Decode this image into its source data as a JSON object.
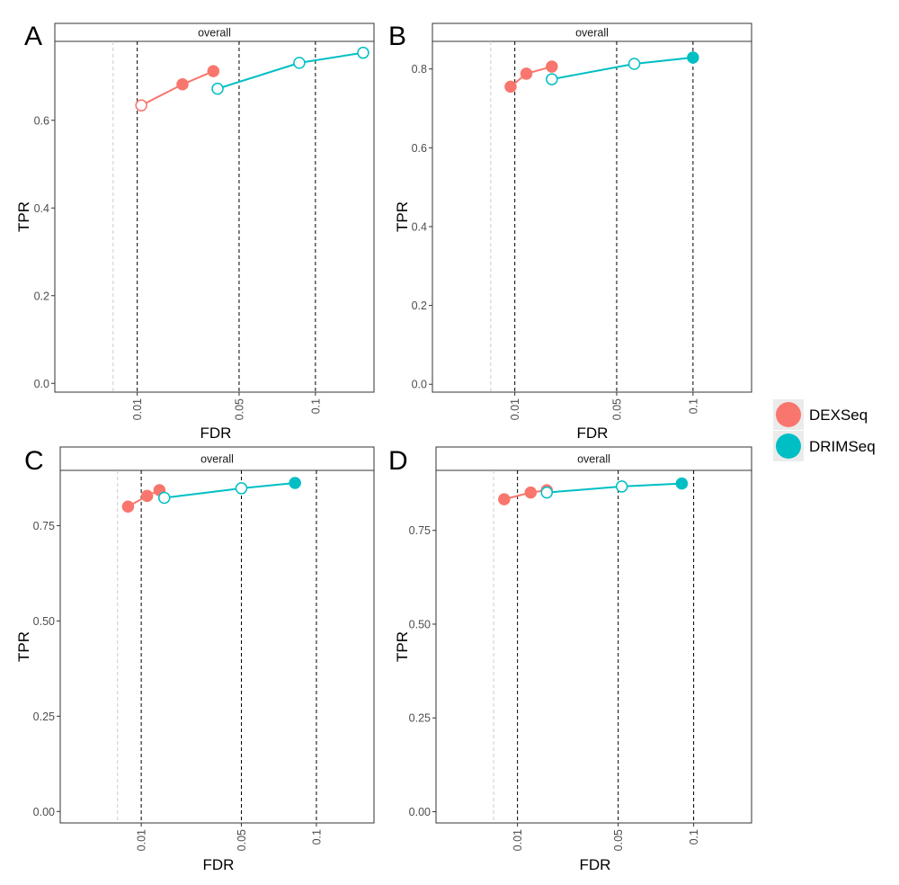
{
  "colors": {
    "DEXSeq": "#F8766D",
    "DRIMSeq": "#00BFC4",
    "dashed_line": "#000000",
    "faint_line": "#cccccc"
  },
  "legend": {
    "placement": "right",
    "entries": [
      "DEXSeq",
      "DRIMSeq"
    ]
  },
  "chart_data": [
    {
      "type": "line",
      "panel": "A",
      "strip": "overall",
      "xlabel": "FDR",
      "ylabel": "TPR",
      "x_scale": "sqrt",
      "xlim": [
        0,
        0.15
      ],
      "ylim": [
        -0.02,
        0.78
      ],
      "x_ticks": [
        0.01,
        0.05,
        0.1
      ],
      "x_tick_labels": [
        "0.01",
        "0.05",
        "0.1"
      ],
      "y_ticks": [
        0.0,
        0.2,
        0.4,
        0.6
      ],
      "y_tick_labels": [
        "0.0",
        "0.2",
        "0.4",
        "0.6"
      ],
      "thresholds": [
        0.01,
        0.05,
        0.1
      ],
      "faint_line": 0.005,
      "grid": false,
      "series": [
        {
          "name": "DEXSeq",
          "points": [
            {
              "x": 0.011,
              "y": 0.634,
              "filled": false
            },
            {
              "x": 0.024,
              "y": 0.682,
              "filled": true
            },
            {
              "x": 0.037,
              "y": 0.712,
              "filled": true
            }
          ]
        },
        {
          "name": "DRIMSeq",
          "points": [
            {
              "x": 0.039,
              "y": 0.672,
              "filled": false
            },
            {
              "x": 0.088,
              "y": 0.731,
              "filled": false
            },
            {
              "x": 0.14,
              "y": 0.754,
              "filled": false
            }
          ]
        }
      ]
    },
    {
      "type": "line",
      "panel": "B",
      "strip": "overall",
      "xlabel": "FDR",
      "ylabel": "TPR",
      "x_scale": "sqrt",
      "xlim": [
        0,
        0.15
      ],
      "ylim": [
        -0.02,
        0.87
      ],
      "x_ticks": [
        0.01,
        0.05,
        0.1
      ],
      "x_tick_labels": [
        "0.01",
        "0.05",
        "0.1"
      ],
      "y_ticks": [
        0.0,
        0.2,
        0.4,
        0.6,
        0.8
      ],
      "y_tick_labels": [
        "0.0",
        "0.2",
        "0.4",
        "0.6",
        "0.8"
      ],
      "thresholds": [
        0.01,
        0.05,
        0.1
      ],
      "faint_line": 0.005,
      "grid": false,
      "series": [
        {
          "name": "DEXSeq",
          "points": [
            {
              "x": 0.009,
              "y": 0.755,
              "filled": true
            },
            {
              "x": 0.013,
              "y": 0.788,
              "filled": true
            },
            {
              "x": 0.021,
              "y": 0.806,
              "filled": true
            }
          ]
        },
        {
          "name": "DRIMSeq",
          "points": [
            {
              "x": 0.021,
              "y": 0.774,
              "filled": false
            },
            {
              "x": 0.06,
              "y": 0.813,
              "filled": false
            },
            {
              "x": 0.1,
              "y": 0.829,
              "filled": true
            }
          ]
        }
      ]
    },
    {
      "type": "line",
      "panel": "C",
      "strip": "overall",
      "xlabel": "FDR",
      "ylabel": "TPR",
      "x_scale": "sqrt",
      "xlim": [
        0,
        0.15
      ],
      "ylim": [
        -0.03,
        0.895
      ],
      "x_ticks": [
        0.01,
        0.05,
        0.1
      ],
      "x_tick_labels": [
        "0.01",
        "0.05",
        "0.1"
      ],
      "y_ticks": [
        0.0,
        0.25,
        0.5,
        0.75
      ],
      "y_tick_labels": [
        "0.00",
        "0.25",
        "0.50",
        "0.75"
      ],
      "thresholds": [
        0.01,
        0.05,
        0.1
      ],
      "faint_line": 0.005,
      "grid": false,
      "series": [
        {
          "name": "DEXSeq",
          "points": [
            {
              "x": 0.007,
              "y": 0.8,
              "filled": true
            },
            {
              "x": 0.0115,
              "y": 0.828,
              "filled": true
            },
            {
              "x": 0.015,
              "y": 0.843,
              "filled": true
            }
          ]
        },
        {
          "name": "DRIMSeq",
          "points": [
            {
              "x": 0.0165,
              "y": 0.823,
              "filled": false
            },
            {
              "x": 0.05,
              "y": 0.848,
              "filled": false
            },
            {
              "x": 0.084,
              "y": 0.862,
              "filled": true
            }
          ]
        }
      ]
    },
    {
      "type": "line",
      "panel": "D",
      "strip": "overall",
      "xlabel": "FDR",
      "ylabel": "TPR",
      "x_scale": "sqrt",
      "xlim": [
        0,
        0.15
      ],
      "ylim": [
        -0.03,
        0.91
      ],
      "x_ticks": [
        0.01,
        0.05,
        0.1
      ],
      "x_tick_labels": [
        "0.01",
        "0.05",
        "0.1"
      ],
      "y_ticks": [
        0.0,
        0.25,
        0.5,
        0.75
      ],
      "y_tick_labels": [
        "0.00",
        "0.25",
        "0.50",
        "0.75"
      ],
      "thresholds": [
        0.01,
        0.05,
        0.1
      ],
      "faint_line": 0.005,
      "grid": false,
      "series": [
        {
          "name": "DEXSeq",
          "points": [
            {
              "x": 0.007,
              "y": 0.833,
              "filled": true
            },
            {
              "x": 0.0135,
              "y": 0.851,
              "filled": true
            },
            {
              "x": 0.0185,
              "y": 0.857,
              "filled": true
            }
          ]
        },
        {
          "name": "DRIMSeq",
          "points": [
            {
              "x": 0.0185,
              "y": 0.851,
              "filled": false
            },
            {
              "x": 0.052,
              "y": 0.867,
              "filled": false
            },
            {
              "x": 0.091,
              "y": 0.875,
              "filled": true
            }
          ]
        }
      ]
    }
  ]
}
